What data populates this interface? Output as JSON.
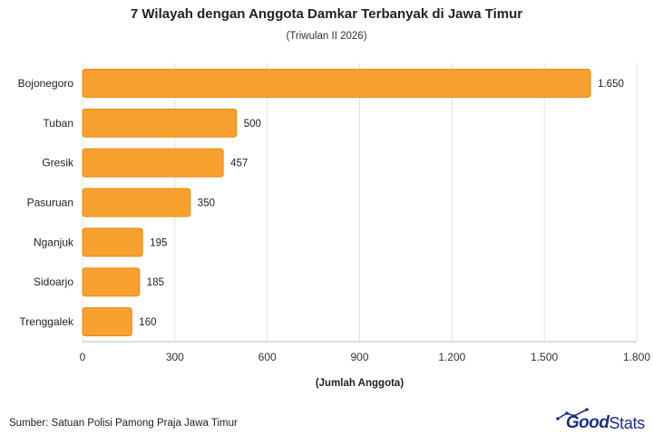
{
  "header": {
    "title": "7 Wilayah dengan Anggota Damkar Terbanyak di Jawa Timur",
    "subtitle": "(Triwulan II 2026)"
  },
  "footer": {
    "source": "Sumber: Satuan Polisi Pamong Praja Jawa Timur",
    "logo_good": "Good",
    "logo_stats": "Stats"
  },
  "colors": {
    "bar_fill": "#f9a12e",
    "bar_stroke": "#e38a12",
    "grid": "#e3e3e3",
    "logo": "#1d2f87"
  },
  "chart_data": {
    "type": "bar",
    "orientation": "horizontal",
    "title": "7 Wilayah dengan Anggota Damkar Terbanyak di Jawa Timur",
    "subtitle": "(Triwulan II 2026)",
    "xlabel": "(Jumlah Anggota)",
    "ylabel": "",
    "categories": [
      "Bojonegoro",
      "Tuban",
      "Gresik",
      "Pasuruan",
      "Nganjuk",
      "Sidoarjo",
      "Trenggalek"
    ],
    "values": [
      1650,
      500,
      457,
      350,
      195,
      185,
      160
    ],
    "value_labels": [
      "1.650",
      "500",
      "457",
      "350",
      "195",
      "185",
      "160"
    ],
    "xlim": [
      0,
      1800
    ],
    "xticks": [
      0,
      300,
      600,
      900,
      1200,
      1500,
      1800
    ],
    "xtick_labels": [
      "0",
      "300",
      "600",
      "900",
      "1.200",
      "1.500",
      "1.800"
    ],
    "grid": true,
    "legend": "none"
  }
}
